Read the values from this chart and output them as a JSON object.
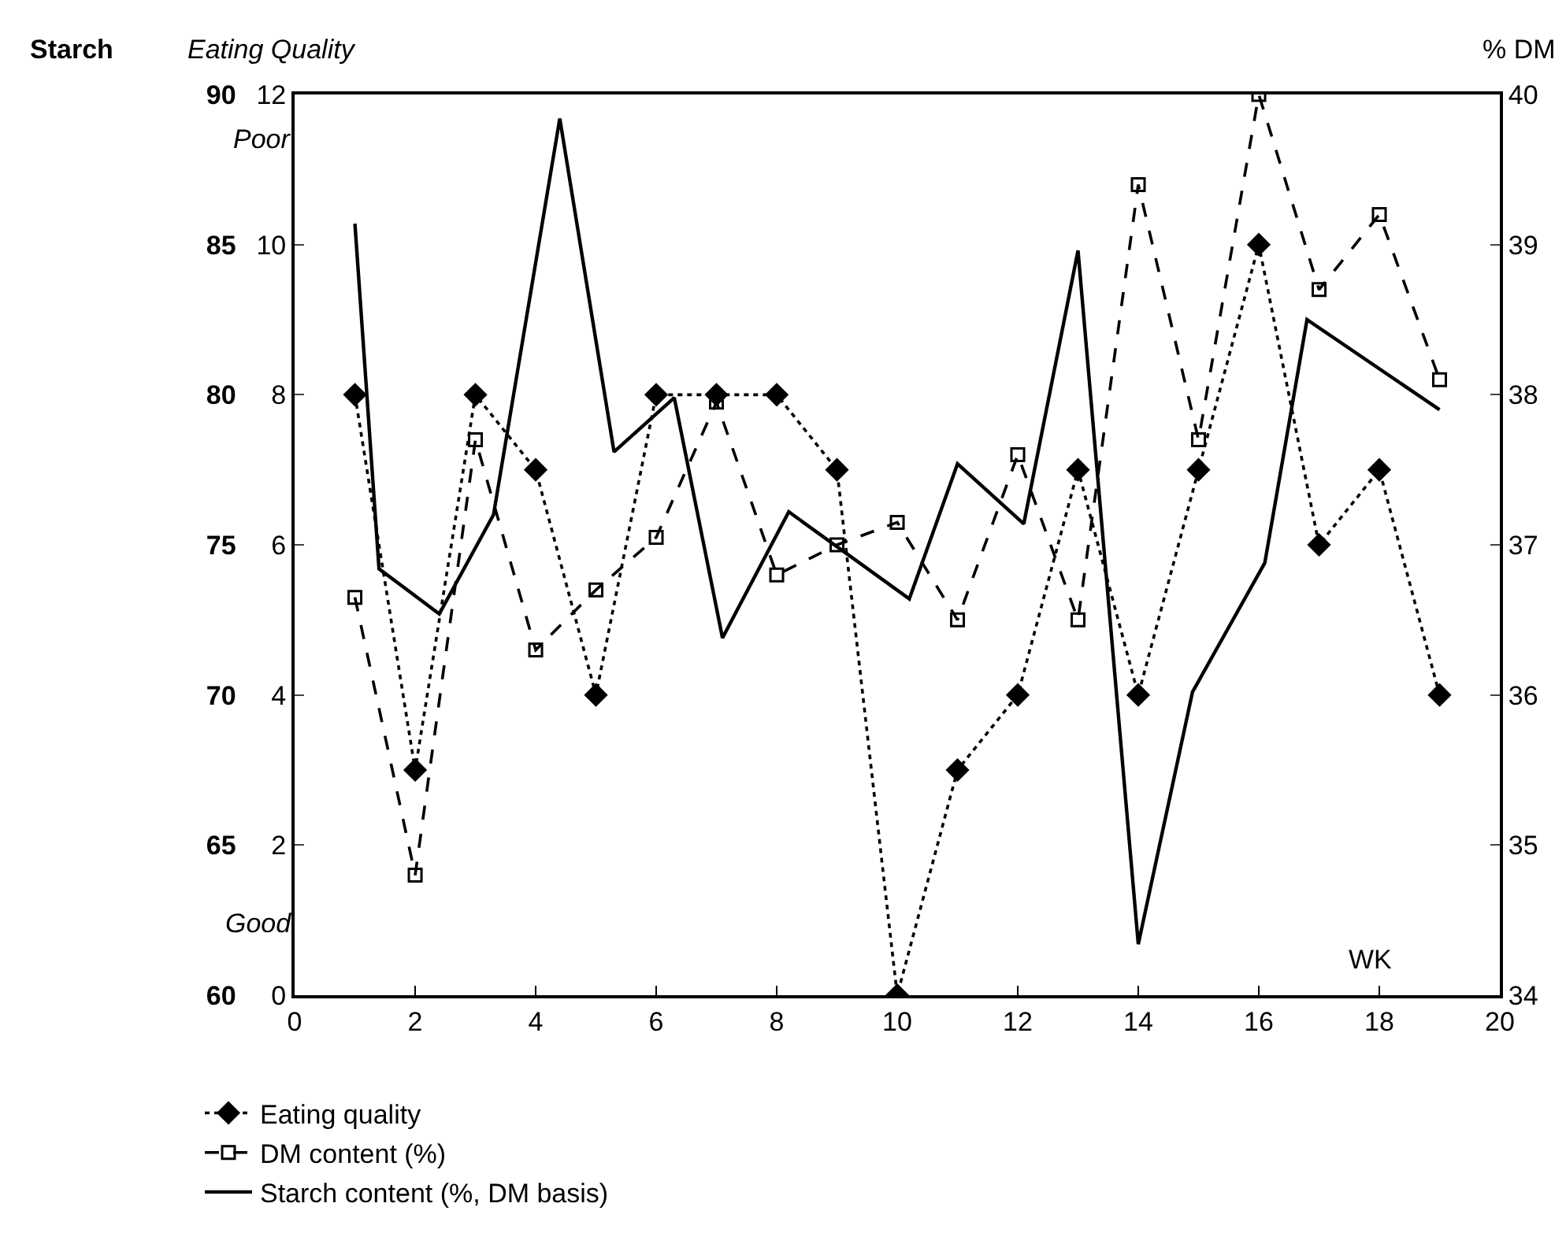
{
  "chart_data": {
    "type": "line",
    "ylabel": "Eating Quality",
    "y2label": "% DM",
    "y3label": "Starch",
    "xlim": [
      0,
      20
    ],
    "xticks": [
      0,
      2,
      4,
      6,
      8,
      10,
      12,
      14,
      16,
      18,
      20
    ],
    "ylim": [
      0,
      12
    ],
    "yticks": [
      0,
      2,
      4,
      6,
      8,
      10,
      12
    ],
    "y2lim": [
      34,
      40
    ],
    "y2ticks": [
      34,
      35,
      36,
      37,
      38,
      39,
      40
    ],
    "y3lim": [
      60,
      90
    ],
    "y3ticks": [
      60,
      65,
      70,
      75,
      80,
      85,
      90
    ],
    "annotations": [
      "Poor",
      "Good",
      "WK"
    ],
    "legend": "bottom left",
    "grid": false,
    "series": [
      {
        "name": "Eating quality",
        "color": "#000000",
        "marker": "diamond",
        "line_style": "dotted",
        "x": [
          1,
          2,
          3,
          4,
          5,
          6,
          7,
          8,
          9,
          10,
          11,
          12,
          13,
          14,
          15,
          16,
          17,
          18,
          19
        ],
        "values": [
          8,
          3,
          8,
          7,
          4,
          8,
          8,
          8,
          7,
          0,
          3,
          4,
          7,
          4,
          7,
          10,
          6,
          7,
          4
        ]
      },
      {
        "name": "DM content (%)",
        "color": "#000000",
        "marker": "square",
        "line_style": "dashed",
        "axis": "y2",
        "x": [
          1,
          2,
          3,
          4,
          5,
          6,
          7,
          8,
          9,
          10,
          11,
          12,
          13,
          14,
          15,
          16,
          17,
          18,
          19
        ],
        "values": [
          36.65,
          34.8,
          37.7,
          36.3,
          36.7,
          37.05,
          37.95,
          36.8,
          37.0,
          37.15,
          36.5,
          37.6,
          36.5,
          39.4,
          37.7,
          40.0,
          38.7,
          39.2,
          38.1
        ]
      },
      {
        "name": "Starch content (%, DM basis)",
        "color": "#000000",
        "marker": "none",
        "line_style": "solid",
        "axis": "y3",
        "x": [
          1.0,
          1.4,
          2.4,
          3.3,
          4.4,
          5.3,
          6.3,
          7.1,
          8.2,
          10.2,
          11.0,
          12.1,
          13.0,
          14.0,
          14.9,
          16.1,
          16.8,
          19.0
        ],
        "values": [
          85.7,
          74.2,
          72.7,
          76.0,
          89.2,
          78.1,
          79.9,
          71.9,
          76.1,
          73.2,
          77.7,
          75.7,
          84.8,
          61.7,
          70.1,
          74.4,
          82.5,
          79.5
        ]
      }
    ]
  }
}
